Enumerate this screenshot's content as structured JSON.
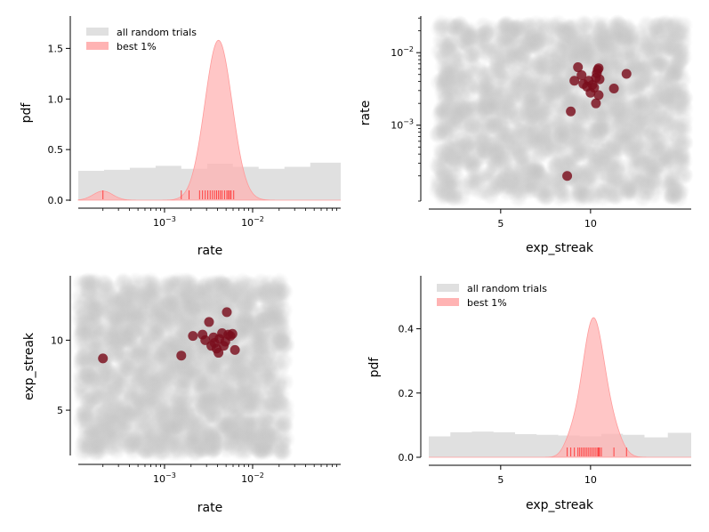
{
  "colors": {
    "hist_fill": "#e0e0e0",
    "kde_fill": "#ffb3b3",
    "kde_stroke": "#ff9a9a",
    "rug": "#ff4040",
    "cloud": "#c8c8c8",
    "best_point": "#7a0d1c"
  },
  "chart_data": [
    {
      "id": "rate-pdf",
      "type": "area",
      "xlabel": "rate",
      "ylabel": "pdf",
      "xscale": "log",
      "xlim": [
        0.000105,
        0.1
      ],
      "ylim": [
        0,
        1.82
      ],
      "xticks": [
        {
          "value": 0.001,
          "label": "10",
          "exp": "−3"
        },
        {
          "value": 0.01,
          "label": "10",
          "exp": "−2"
        }
      ],
      "yticks": [
        {
          "value": 0,
          "label": "0.0"
        },
        {
          "value": 0.5,
          "label": "0.5"
        },
        {
          "value": 1.0,
          "label": "1.0"
        },
        {
          "value": 1.5,
          "label": "1.5"
        }
      ],
      "legend": {
        "position": "top-left",
        "entries": [
          "all random trials",
          "best 1%"
        ]
      },
      "histogram": {
        "edges": [
          0.000105,
          0.000206,
          0.000404,
          0.000792,
          0.00155,
          0.00305,
          0.00598,
          0.0117,
          0.023,
          0.0451,
          0.1
        ],
        "density": [
          0.29,
          0.3,
          0.32,
          0.34,
          0.31,
          0.36,
          0.33,
          0.31,
          0.33,
          0.37
        ]
      },
      "kde": {
        "components": [
          {
            "center": 0.0002,
            "log_sd": 0.11,
            "height": 0.09
          },
          {
            "center": 0.0041,
            "log_sd": 0.155,
            "height": 1.58
          }
        ]
      },
      "rug": [
        0.0002,
        0.00155,
        0.0019,
        0.0025,
        0.0027,
        0.0029,
        0.0031,
        0.0033,
        0.0035,
        0.0037,
        0.0039,
        0.0041,
        0.0043,
        0.0045,
        0.0048,
        0.0051,
        0.0053,
        0.0055,
        0.0057,
        0.0061
      ]
    },
    {
      "id": "streak-vs-rate",
      "type": "scatter",
      "xlabel": "exp_streak",
      "ylabel": "rate",
      "yscale": "log",
      "xlim": [
        1,
        15.6
      ],
      "ylim": [
        9e-05,
        0.032
      ],
      "xticks": [
        {
          "value": 5,
          "label": "5"
        },
        {
          "value": 10,
          "label": "10"
        }
      ],
      "yticks": [
        {
          "value": 0.001,
          "label": "10",
          "exp": "−3"
        },
        {
          "value": 0.01,
          "label": "10",
          "exp": "−2"
        }
      ],
      "cloud_region": {
        "x": [
          1.5,
          15.2
        ],
        "y": [
          0.0001,
          0.025
        ]
      },
      "points": [
        {
          "x": 8.7,
          "y": 0.0002
        },
        {
          "x": 8.9,
          "y": 0.00155
        },
        {
          "x": 9.1,
          "y": 0.0041
        },
        {
          "x": 9.3,
          "y": 0.0063
        },
        {
          "x": 9.5,
          "y": 0.0049
        },
        {
          "x": 9.6,
          "y": 0.0037
        },
        {
          "x": 9.8,
          "y": 0.0034
        },
        {
          "x": 9.9,
          "y": 0.0041
        },
        {
          "x": 10.0,
          "y": 0.0028
        },
        {
          "x": 10.1,
          "y": 0.0036
        },
        {
          "x": 10.2,
          "y": 0.0033
        },
        {
          "x": 10.3,
          "y": 0.0045
        },
        {
          "x": 10.35,
          "y": 0.0052
        },
        {
          "x": 10.4,
          "y": 0.0058
        },
        {
          "x": 10.5,
          "y": 0.0043
        },
        {
          "x": 10.45,
          "y": 0.0061
        },
        {
          "x": 10.3,
          "y": 0.002
        },
        {
          "x": 10.45,
          "y": 0.0026
        },
        {
          "x": 11.3,
          "y": 0.0032
        },
        {
          "x": 12.0,
          "y": 0.0051
        }
      ]
    },
    {
      "id": "rate-vs-streak",
      "type": "scatter",
      "xlabel": "rate",
      "ylabel": "exp_streak",
      "xscale": "log",
      "xlim": [
        0.000105,
        0.1
      ],
      "ylim": [
        1.7,
        14.6
      ],
      "xticks": [
        {
          "value": 0.001,
          "label": "10",
          "exp": "−3"
        },
        {
          "value": 0.01,
          "label": "10",
          "exp": "−2"
        }
      ],
      "yticks": [
        {
          "value": 5,
          "label": "5"
        },
        {
          "value": 10,
          "label": "10"
        }
      ],
      "cloud_region": {
        "x": [
          0.00011,
          0.024
        ],
        "y": [
          2.0,
          14.2
        ]
      },
      "points": [
        {
          "x": 0.0002,
          "y": 8.7
        },
        {
          "x": 0.00155,
          "y": 8.9
        },
        {
          "x": 0.0021,
          "y": 10.3
        },
        {
          "x": 0.0027,
          "y": 10.4
        },
        {
          "x": 0.0029,
          "y": 10.0
        },
        {
          "x": 0.0032,
          "y": 11.3
        },
        {
          "x": 0.0034,
          "y": 9.6
        },
        {
          "x": 0.0036,
          "y": 10.2
        },
        {
          "x": 0.0037,
          "y": 9.8
        },
        {
          "x": 0.0039,
          "y": 9.4
        },
        {
          "x": 0.0041,
          "y": 9.1
        },
        {
          "x": 0.0042,
          "y": 10.1
        },
        {
          "x": 0.0045,
          "y": 10.5
        },
        {
          "x": 0.0047,
          "y": 9.6
        },
        {
          "x": 0.0049,
          "y": 9.9
        },
        {
          "x": 0.0051,
          "y": 12.0
        },
        {
          "x": 0.0053,
          "y": 10.4
        },
        {
          "x": 0.0056,
          "y": 10.3
        },
        {
          "x": 0.0059,
          "y": 10.45
        },
        {
          "x": 0.0063,
          "y": 9.3
        }
      ]
    },
    {
      "id": "streak-pdf",
      "type": "area",
      "xlabel": "exp_streak",
      "ylabel": "pdf",
      "xlim": [
        1,
        15.6
      ],
      "ylim": [
        0,
        0.565
      ],
      "xticks": [
        {
          "value": 5,
          "label": "5"
        },
        {
          "value": 10,
          "label": "10"
        }
      ],
      "yticks": [
        {
          "value": 0,
          "label": "0.0"
        },
        {
          "value": 0.2,
          "label": "0.2"
        },
        {
          "value": 0.4,
          "label": "0.4"
        }
      ],
      "legend": {
        "position": "top-left",
        "entries": [
          "all random trials",
          "best 1%"
        ]
      },
      "histogram": {
        "edges": [
          1.0,
          2.2,
          3.4,
          4.6,
          5.8,
          7.0,
          8.2,
          9.4,
          10.6,
          11.8,
          13.0,
          14.3,
          15.6
        ],
        "density": [
          0.065,
          0.078,
          0.08,
          0.078,
          0.072,
          0.07,
          0.068,
          0.065,
          0.073,
          0.07,
          0.062,
          0.076
        ]
      },
      "kde": {
        "components": [
          {
            "center": 10.15,
            "sd": 0.62,
            "height": 0.43
          },
          {
            "center": 11.3,
            "sd": 0.5,
            "height": 0.06
          },
          {
            "center": 8.9,
            "sd": 0.4,
            "height": 0.04
          }
        ]
      },
      "rug": [
        8.7,
        8.9,
        9.1,
        9.3,
        9.4,
        9.5,
        9.6,
        9.7,
        9.8,
        9.9,
        10.0,
        10.1,
        10.2,
        10.3,
        10.4,
        10.45,
        10.5,
        10.6,
        11.3,
        12.0
      ]
    }
  ]
}
